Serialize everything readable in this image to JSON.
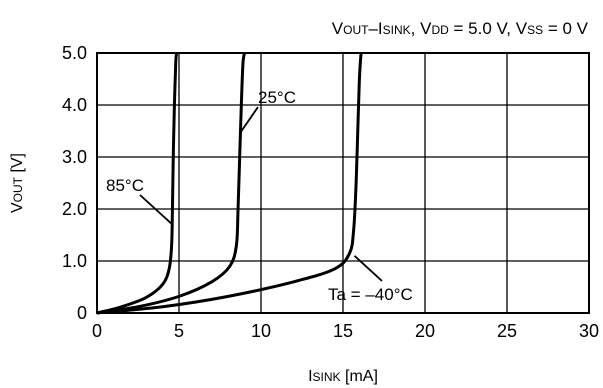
{
  "chart_data": {
    "type": "line",
    "title_parts": [
      {
        "text": "V",
        "sub": "OUT"
      },
      {
        "text": "–I",
        "sub": "SINK"
      },
      {
        "text": ", V",
        "sub": "DD"
      },
      {
        "text": " = 5.0 V, V",
        "sub": "SS"
      },
      {
        "text": " = 0 V",
        "sub": ""
      }
    ],
    "xlabel": {
      "main": "I",
      "sub": "SINK",
      "rest": " [mA]"
    },
    "ylabel": {
      "main": "V",
      "sub": "OUT",
      "rest": " [V]"
    },
    "xlim": [
      0,
      30
    ],
    "ylim": [
      0,
      5
    ],
    "xticks": [
      0,
      5,
      10,
      15,
      20,
      25,
      30
    ],
    "xtick_labels": [
      "0",
      "5",
      "10",
      "15",
      "20",
      "25",
      "30"
    ],
    "yticks": [
      0,
      1,
      2,
      3,
      4,
      5
    ],
    "ytick_labels": [
      "0",
      "1.0",
      "2.0",
      "3.0",
      "4.0",
      "5.0"
    ],
    "grid": true,
    "series": [
      {
        "name": "85°C",
        "x": [
          0,
          1.5,
          3.0,
          4.0,
          4.4,
          4.55,
          4.6,
          4.65,
          4.72,
          4.8,
          4.85
        ],
        "y": [
          0,
          0.12,
          0.3,
          0.55,
          0.85,
          1.3,
          2.0,
          3.0,
          4.0,
          4.8,
          5.0
        ]
      },
      {
        "name": "25°C",
        "x": [
          0,
          2.5,
          5.0,
          7.0,
          8.1,
          8.5,
          8.6,
          8.7,
          8.8,
          8.9,
          9.0
        ],
        "y": [
          0,
          0.12,
          0.32,
          0.6,
          0.9,
          1.3,
          2.0,
          3.0,
          4.0,
          4.8,
          5.0
        ]
      },
      {
        "name": "Ta = –40°C",
        "x": [
          0,
          4,
          8,
          12,
          14.5,
          15.4,
          15.65,
          15.8,
          15.9,
          16.0,
          16.1
        ],
        "y": [
          0,
          0.12,
          0.32,
          0.6,
          0.85,
          1.15,
          1.6,
          2.5,
          3.5,
          4.5,
          5.0
        ]
      }
    ],
    "annotations": [
      {
        "text": "85°C",
        "pointer": [
          4.6,
          1.7
        ]
      },
      {
        "text": "25°C",
        "pointer": [
          8.7,
          3.45
        ]
      },
      {
        "text": "Ta = –40°C",
        "pointer": [
          15.7,
          1.1
        ]
      }
    ]
  }
}
